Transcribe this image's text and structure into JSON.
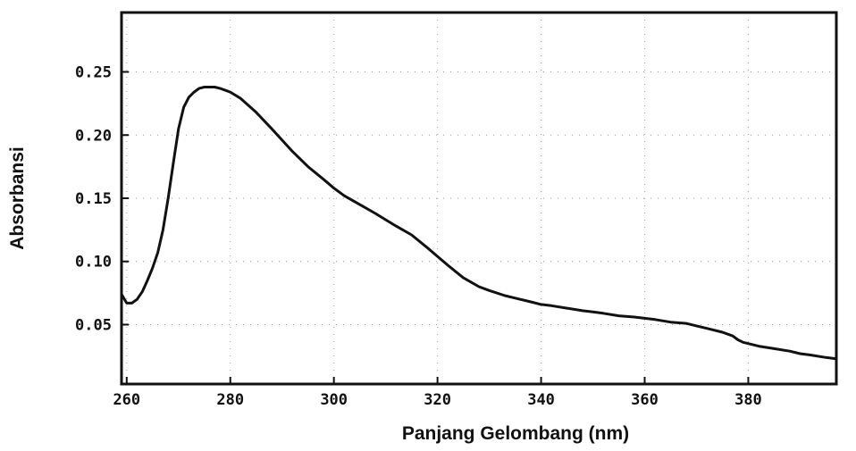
{
  "chart_data": {
    "type": "line",
    "title": "",
    "xlabel": "Panjang Gelombang (nm)",
    "ylabel": "Absorbansi",
    "xlim": [
      259,
      397
    ],
    "ylim": [
      0.003,
      0.297
    ],
    "grid": "dotted",
    "x_ticks": [
      260,
      280,
      300,
      320,
      340,
      360,
      380
    ],
    "x_tick_labels": [
      "260",
      "280",
      "300",
      "320",
      "340",
      "360",
      "380"
    ],
    "y_ticks": [
      0.05,
      0.1,
      0.15,
      0.2,
      0.25
    ],
    "y_tick_labels": [
      "0.05",
      "0.10",
      "0.15",
      "0.20",
      "0.25"
    ],
    "series": [
      {
        "color": "#111111",
        "x": [
          259,
          260,
          261,
          262,
          263,
          264,
          265,
          266,
          267,
          268,
          269,
          270,
          271,
          272,
          273,
          274,
          275,
          276,
          277,
          278,
          280,
          282,
          285,
          288,
          290,
          292,
          295,
          298,
          300,
          302,
          305,
          308,
          310,
          312,
          315,
          318,
          320,
          322,
          325,
          328,
          330,
          333,
          335,
          338,
          340,
          342,
          345,
          348,
          350,
          352,
          355,
          358,
          360,
          362,
          365,
          368,
          370,
          372,
          375,
          377,
          378,
          379,
          380,
          382,
          385,
          388,
          390,
          392,
          395,
          397
        ],
        "y": [
          0.074,
          0.067,
          0.067,
          0.07,
          0.076,
          0.085,
          0.095,
          0.107,
          0.125,
          0.15,
          0.178,
          0.205,
          0.222,
          0.23,
          0.234,
          0.237,
          0.238,
          0.238,
          0.238,
          0.237,
          0.234,
          0.229,
          0.218,
          0.205,
          0.196,
          0.187,
          0.175,
          0.165,
          0.158,
          0.152,
          0.145,
          0.138,
          0.133,
          0.128,
          0.121,
          0.111,
          0.104,
          0.097,
          0.087,
          0.08,
          0.077,
          0.073,
          0.071,
          0.068,
          0.066,
          0.065,
          0.063,
          0.061,
          0.06,
          0.059,
          0.057,
          0.056,
          0.055,
          0.054,
          0.052,
          0.051,
          0.049,
          0.047,
          0.044,
          0.041,
          0.038,
          0.036,
          0.035,
          0.033,
          0.031,
          0.029,
          0.027,
          0.026,
          0.024,
          0.023
        ]
      }
    ]
  }
}
